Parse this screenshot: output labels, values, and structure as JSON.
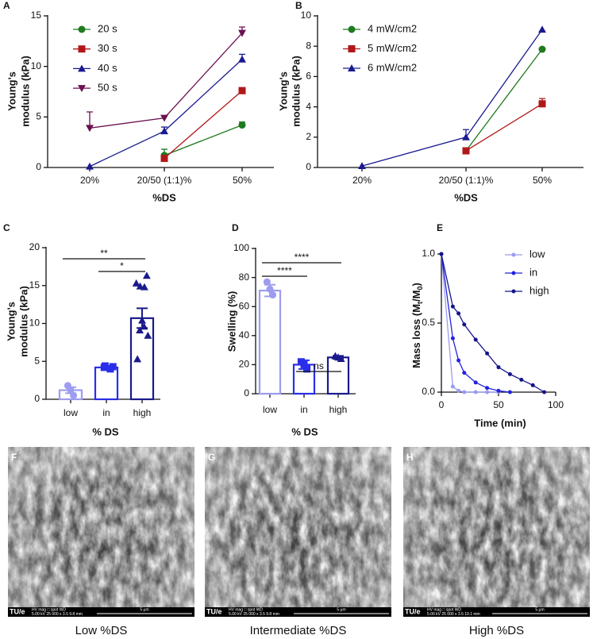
{
  "chart_data": [
    {
      "type": "line",
      "panel": "A",
      "ylabel": [
        "Young's",
        "modulus (kPa)"
      ],
      "xlabel": "%DS",
      "categories": [
        "20%",
        "20/50 (1:1)%",
        "50%"
      ],
      "ylim": [
        0,
        15
      ],
      "yticks": [
        0,
        5,
        10,
        15
      ],
      "legend": "upper left",
      "series": [
        {
          "name": "20 s",
          "color": "#1e7a1e",
          "marker": "circle",
          "values": [
            null,
            1.2,
            4.2
          ],
          "errors": [
            null,
            0.6,
            0.3
          ]
        },
        {
          "name": "30 s",
          "color": "#b01818",
          "marker": "square",
          "values": [
            null,
            0.9,
            7.6
          ],
          "errors": [
            null,
            0.2,
            0.3
          ]
        },
        {
          "name": "40 s",
          "color": "#1a1a90",
          "marker": "triangle",
          "values": [
            0.1,
            3.6,
            10.7
          ],
          "errors": [
            null,
            0.4,
            0.5
          ]
        },
        {
          "name": "50 s",
          "color": "#6a1050",
          "marker": "triangle-down",
          "values": [
            3.9,
            4.9,
            13.3
          ],
          "errors": [
            1.6,
            0.2,
            0.6
          ]
        }
      ]
    },
    {
      "type": "line",
      "panel": "B",
      "ylabel": [
        "Young's",
        "modulus (kPa)"
      ],
      "xlabel": "%DS",
      "categories": [
        "20%",
        "20/50 (1:1)%",
        "50%"
      ],
      "ylim": [
        0,
        10
      ],
      "yticks": [
        0,
        2,
        4,
        6,
        8,
        10
      ],
      "legend": "upper left",
      "series": [
        {
          "name": "4 mW/cm2",
          "color": "#1e7a1e",
          "marker": "circle",
          "values": [
            null,
            1.1,
            7.8
          ],
          "errors": [
            null,
            0.1,
            null
          ]
        },
        {
          "name": "5 mW/cm2",
          "color": "#b01818",
          "marker": "square",
          "values": [
            null,
            1.1,
            4.2
          ],
          "errors": [
            null,
            0.1,
            0.35
          ]
        },
        {
          "name": "6 mW/cm2",
          "color": "#1a1a90",
          "marker": "triangle",
          "values": [
            0.1,
            2.0,
            9.1
          ],
          "errors": [
            null,
            0.5,
            null
          ]
        }
      ]
    },
    {
      "type": "bar",
      "panel": "C",
      "ylabel": [
        "Young's",
        "modulus (kPa)"
      ],
      "xlabel": "% DS",
      "categories": [
        "low",
        "in",
        "high"
      ],
      "colors": [
        "#9d9cf0",
        "#2a2ee8",
        "#1a1a8c"
      ],
      "point_markers": [
        "circle",
        "square",
        "triangle"
      ],
      "values": [
        1.2,
        4.2,
        10.7
      ],
      "errors": [
        0.4,
        0.2,
        1.3
      ],
      "points": [
        [
          0.5,
          1.2,
          1.8
        ],
        [
          4.0,
          4.2,
          4.4,
          4.3
        ],
        [
          16.3,
          15.3,
          14.8,
          14.9,
          10.4,
          9.6,
          9.1,
          8.4,
          5.3
        ]
      ],
      "ylim": [
        0,
        20
      ],
      "yticks": [
        0,
        5,
        10,
        15,
        20
      ],
      "annotations": [
        "**",
        "*"
      ]
    },
    {
      "type": "bar",
      "panel": "D",
      "ylabel": [
        "Swelling (%)"
      ],
      "xlabel": "% DS",
      "categories": [
        "low",
        "in",
        "high"
      ],
      "colors": [
        "#9d9cf0",
        "#2a2ee8",
        "#1a1a8c"
      ],
      "point_markers": [
        "circle",
        "square",
        "triangle"
      ],
      "values": [
        71,
        20,
        25
      ],
      "errors": [
        4,
        3,
        1
      ],
      "points": [
        [
          68,
          72,
          77
        ],
        [
          17,
          20,
          22
        ],
        [
          24,
          25,
          26
        ]
      ],
      "ylim": [
        0,
        100
      ],
      "yticks": [
        0,
        20,
        40,
        60,
        80,
        100
      ],
      "annotations": [
        "****",
        "****",
        "ns"
      ]
    },
    {
      "type": "line",
      "panel": "E",
      "ylabel": [
        "Mass loss (M",
        "t",
        "/M",
        "0",
        ")"
      ],
      "xlabel": "Time (min)",
      "x": [
        0,
        10,
        15,
        20,
        30,
        40,
        50,
        60,
        70,
        80,
        90
      ],
      "xlim": [
        0,
        100
      ],
      "xticks": [
        0,
        50,
        100
      ],
      "ylim": [
        0,
        1
      ],
      "yticks": [
        {
          "value": 0,
          "label": "0.0"
        },
        {
          "value": 0.5,
          "label": "0.5"
        },
        {
          "value": 1,
          "label": "1.0"
        }
      ],
      "legend": "upper right",
      "series": [
        {
          "name": "low",
          "color": "#9a9af0",
          "marker": "circle",
          "values": [
            1.0,
            0.04,
            0.01,
            0,
            0,
            0,
            0,
            null,
            null,
            null,
            null
          ]
        },
        {
          "name": "in",
          "color": "#2222e0",
          "marker": "circle",
          "values": [
            1.0,
            0.39,
            0.23,
            0.14,
            0.07,
            0.03,
            0.01,
            0,
            null,
            null,
            null
          ]
        },
        {
          "name": "high",
          "color": "#14148a",
          "marker": "circle",
          "values": [
            1.0,
            0.62,
            0.57,
            0.49,
            0.38,
            0.28,
            0.18,
            0.13,
            0.09,
            0.05,
            0
          ]
        }
      ]
    }
  ],
  "images": [
    {
      "panel": "F",
      "caption": "Low %DS",
      "logo": "TU/e",
      "info_head": "HV     mag □   spot   WD",
      "info": "5.00 kV 25 000 x  3.5  9.8 mm",
      "scalebar": "5 µm"
    },
    {
      "panel": "G",
      "caption": "Intermediate %DS",
      "logo": "TU/e",
      "info_head": "HV     mag □   spot   WD",
      "info": "5.00 kV 25 000 x  3.5  9.8 mm",
      "scalebar": "5 µm"
    },
    {
      "panel": "H",
      "caption": "High %DS",
      "logo": "TU/e",
      "info_head": "HV     mag □   spot   WD",
      "info": "5.00 kV 25 000 x  3.5  10.1 mm",
      "scalebar": "5 µm"
    }
  ]
}
